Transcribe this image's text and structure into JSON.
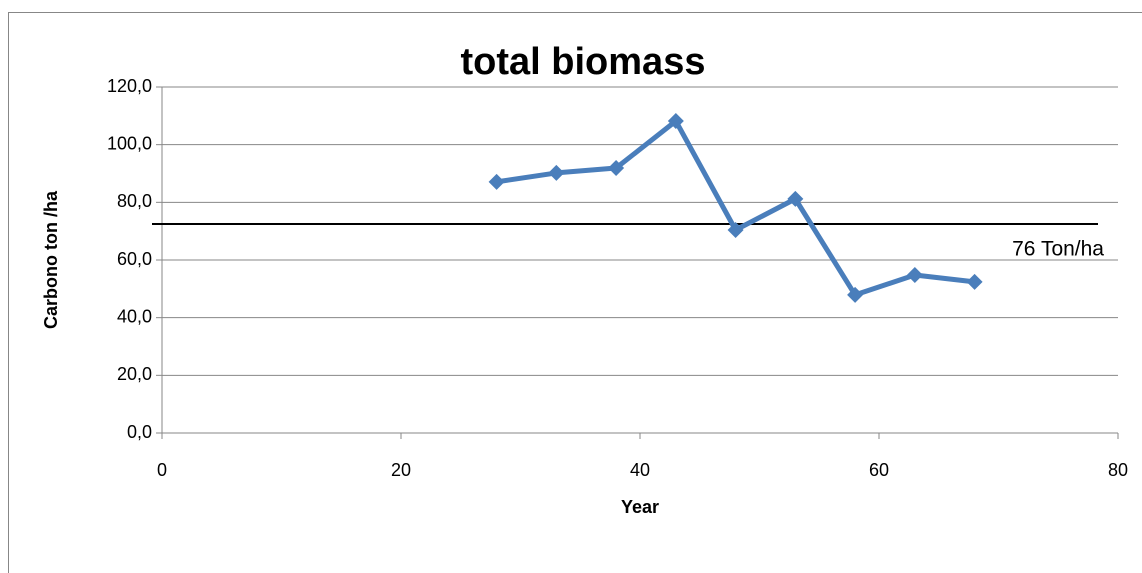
{
  "chart_data": {
    "type": "line",
    "title": "total biomass",
    "x_label": "Year",
    "y_label": "Carbono ton /ha",
    "series": [
      {
        "name": "total biomass",
        "color": "#4a7ebb",
        "x": [
          28,
          33,
          38,
          43,
          48,
          53,
          58,
          63,
          68
        ],
        "values": [
          87.1,
          90.2,
          91.9,
          108.2,
          70.4,
          81.2,
          47.9,
          54.8,
          52.4
        ]
      }
    ],
    "xlim": [
      0,
      80
    ],
    "xticks": [
      0,
      20,
      40,
      60,
      80
    ],
    "ylim": [
      0,
      120
    ],
    "yticks": [
      {
        "value": 0,
        "label": "0,0"
      },
      {
        "value": 20,
        "label": "20,0"
      },
      {
        "value": 40,
        "label": "40,0"
      },
      {
        "value": 60,
        "label": "60,0"
      },
      {
        "value": 80,
        "label": "80,0"
      },
      {
        "value": 100,
        "label": "100,0"
      },
      {
        "value": 120,
        "label": "120,0"
      }
    ],
    "grid": true,
    "reference_line": 72.5,
    "annotation": "76 Ton/ha"
  }
}
